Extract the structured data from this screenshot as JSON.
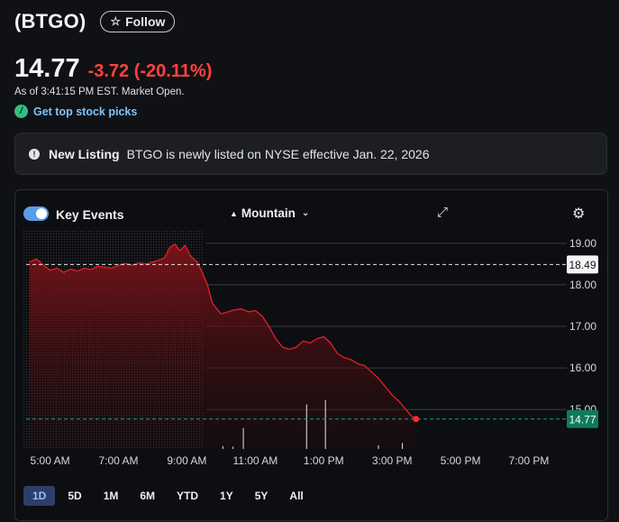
{
  "header": {
    "ticker": "(BTGO)",
    "follow_label": "Follow"
  },
  "quote": {
    "price": "14.77",
    "change": "-3.72 (-20.11%)",
    "as_of": "As of 3:41:15 PM EST. Market Open.",
    "picks_label": "Get top stock picks"
  },
  "notice": {
    "title": "New Listing",
    "body": "BTGO is newly listed on NYSE effective Jan. 22, 2026"
  },
  "chart_toolbar": {
    "key_events_label": "Key Events",
    "key_events_on": true,
    "chart_type_label": "Mountain"
  },
  "ranges": [
    "1D",
    "5D",
    "1M",
    "6M",
    "YTD",
    "1Y",
    "5Y",
    "All"
  ],
  "active_range": "1D",
  "colors": {
    "down": "#ff433d",
    "line": "#e0202a",
    "last_price_bg": "#0f7a5e",
    "accent": "#5b9ce8"
  },
  "chart_data": {
    "type": "area",
    "xlabels": [
      "5:00 AM",
      "7:00 AM",
      "9:00 AM",
      "11:00 AM",
      "1:00 PM",
      "3:00 PM",
      "5:00 PM",
      "7:00 PM"
    ],
    "x_hours": [
      5,
      7,
      9,
      11,
      13,
      15,
      17,
      19
    ],
    "ylabels": [
      "19.00",
      "18.00",
      "17.00",
      "16.00",
      "15.00"
    ],
    "ylim": [
      14.05,
      19.3
    ],
    "xlim": [
      4.3,
      20.0
    ],
    "prev_close": {
      "label": "18.49",
      "value": 18.49
    },
    "last_price": {
      "label": "14.77",
      "value": 14.77
    },
    "series": [
      {
        "x": [
          4.4,
          4.6,
          4.8,
          5.0,
          5.2,
          5.4,
          5.6,
          5.8,
          6.0,
          6.2,
          6.4,
          6.6,
          6.8,
          7.0,
          7.2,
          7.4,
          7.6,
          7.8,
          8.0,
          8.2,
          8.35,
          8.5,
          8.65,
          8.8,
          8.95,
          9.1,
          9.3,
          9.45,
          9.6,
          9.75,
          9.85,
          10.0,
          10.2,
          10.4,
          10.6,
          10.8,
          11.0,
          11.2,
          11.4,
          11.6,
          11.8,
          12.0,
          12.2,
          12.4,
          12.6,
          12.8,
          13.0,
          13.2,
          13.4,
          13.6,
          13.8,
          14.0,
          14.2,
          14.4,
          14.6,
          14.8,
          15.0,
          15.2,
          15.4,
          15.55,
          15.7
        ],
        "y": [
          18.55,
          18.62,
          18.48,
          18.35,
          18.4,
          18.3,
          18.38,
          18.33,
          18.4,
          18.37,
          18.45,
          18.42,
          18.4,
          18.47,
          18.52,
          18.47,
          18.53,
          18.5,
          18.55,
          18.6,
          18.65,
          18.9,
          18.98,
          18.82,
          18.95,
          18.7,
          18.55,
          18.3,
          18.0,
          17.55,
          17.45,
          17.3,
          17.35,
          17.4,
          17.42,
          17.35,
          17.38,
          17.25,
          17.0,
          16.7,
          16.5,
          16.45,
          16.5,
          16.65,
          16.6,
          16.7,
          16.75,
          16.6,
          16.35,
          16.25,
          16.2,
          16.1,
          16.05,
          15.9,
          15.75,
          15.55,
          15.35,
          15.2,
          15.0,
          14.85,
          14.77
        ]
      }
    ],
    "volume_ticks": [
      {
        "x": 10.05,
        "v": 0.05
      },
      {
        "x": 10.35,
        "v": 0.04
      },
      {
        "x": 10.65,
        "v": 0.35
      },
      {
        "x": 12.5,
        "v": 0.75
      },
      {
        "x": 13.05,
        "v": 0.82
      },
      {
        "x": 14.6,
        "v": 0.06
      },
      {
        "x": 15.3,
        "v": 0.1
      }
    ]
  }
}
